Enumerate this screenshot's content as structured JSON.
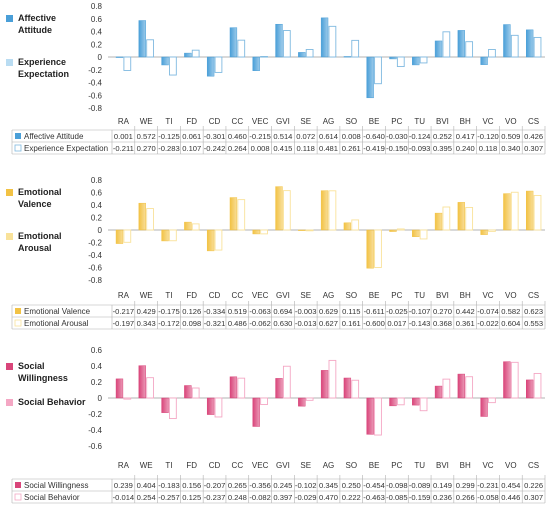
{
  "chart_data": [
    {
      "type": "table",
      "categories": [
        "RA",
        "WE",
        "TI",
        "FD",
        "CD",
        "CC",
        "VEC",
        "GVI",
        "SE",
        "AG",
        "SO",
        "BE",
        "PC",
        "TU",
        "BVI",
        "BH",
        "VC",
        "VO",
        "CS"
      ],
      "yticks": [
        "0.8",
        "0.6",
        "0.4",
        "0.2",
        "0",
        "-0.2",
        "-0.4",
        "-0.6",
        "-0.8"
      ],
      "ylim": [
        -0.8,
        0.8
      ],
      "grid": false,
      "legend_position": "left",
      "series": [
        {
          "name": "Affective Attitude",
          "legend_label": "Affective\nAttitude",
          "color": "#4a9fd8",
          "fill": "gradient",
          "values": [
            0.001,
            0.572,
            -0.125,
            0.061,
            -0.301,
            0.46,
            -0.215,
            0.514,
            0.072,
            0.614,
            0.008,
            -0.64,
            -0.03,
            -0.124,
            0.252,
            0.417,
            -0.12,
            0.509,
            0.426
          ],
          "labels": [
            "0.001",
            "0.572",
            "-0.125",
            "0.061",
            "-0.301",
            "0.460",
            "-0.215",
            "0.514",
            "0.072",
            "0.614",
            "0.008",
            "-0.640",
            "-0.030",
            "-0.124",
            "0.252",
            "0.417",
            "-0.120",
            "0.509",
            "0.426"
          ]
        },
        {
          "name": "Experience Expectation",
          "legend_label": "Experience\nExpectation",
          "color": "#b9dcf2",
          "fill": "outline",
          "values": [
            -0.211,
            0.27,
            -0.283,
            0.107,
            -0.242,
            0.264,
            0.008,
            0.415,
            0.118,
            0.481,
            0.261,
            -0.419,
            -0.15,
            -0.093,
            0.395,
            0.24,
            0.118,
            0.34,
            0.307
          ],
          "labels": [
            "-0.211",
            "0.270",
            "-0.283",
            "0.107",
            "-0.242",
            "0.264",
            "0.008",
            "0.415",
            "0.118",
            "0.481",
            "0.261",
            "-0.419",
            "-0.150",
            "-0.093",
            "0.395",
            "0.240",
            "0.118",
            "0.340",
            "0.307"
          ]
        }
      ]
    },
    {
      "type": "table",
      "categories": [
        "RA",
        "WE",
        "TI",
        "FD",
        "CD",
        "CC",
        "VEC",
        "GVI",
        "SE",
        "AG",
        "SO",
        "BE",
        "PC",
        "TU",
        "BVI",
        "BH",
        "VC",
        "VO",
        "CS"
      ],
      "yticks": [
        "0.8",
        "0.6",
        "0.4",
        "0.2",
        "0",
        "-0.2",
        "-0.4",
        "-0.6",
        "-0.8"
      ],
      "ylim": [
        -0.8,
        0.8
      ],
      "grid": false,
      "legend_position": "left",
      "series": [
        {
          "name": "Emotional Valence",
          "legend_label": "Emotional\nValence",
          "color": "#f2c244",
          "fill": "gradient",
          "values": [
            -0.217,
            0.429,
            -0.175,
            0.126,
            -0.334,
            0.519,
            -0.063,
            0.694,
            -0.003,
            0.629,
            0.115,
            -0.611,
            -0.025,
            -0.107,
            0.27,
            0.442,
            -0.074,
            0.582,
            0.623
          ],
          "labels": [
            "-0.217",
            "0.429",
            "-0.175",
            "0.126",
            "-0.334",
            "0.519",
            "-0.063",
            "0.694",
            "-0.003",
            "0.629",
            "0.115",
            "-0.611",
            "-0.025",
            "-0.107",
            "0.270",
            "0.442",
            "-0.074",
            "0.582",
            "0.623"
          ]
        },
        {
          "name": "Emotional Arousal",
          "legend_label": "Emotional\nArousal",
          "color": "#f9e29a",
          "fill": "outline",
          "values": [
            -0.197,
            0.343,
            -0.172,
            0.098,
            -0.321,
            0.486,
            -0.062,
            0.63,
            -0.013,
            0.627,
            0.161,
            -0.6,
            0.017,
            -0.143,
            0.368,
            0.361,
            -0.022,
            0.604,
            0.553
          ],
          "labels": [
            "-0.197",
            "0.343",
            "-0.172",
            "0.098",
            "-0.321",
            "0.486",
            "-0.062",
            "0.630",
            "-0.013",
            "0.627",
            "0.161",
            "-0.600",
            "0.017",
            "-0.143",
            "0.368",
            "0.361",
            "-0.022",
            "0.604",
            "0.553"
          ]
        }
      ]
    },
    {
      "type": "table",
      "categories": [
        "RA",
        "WE",
        "TI",
        "FD",
        "CD",
        "CC",
        "VEC",
        "GVI",
        "SE",
        "AG",
        "SO",
        "BE",
        "PC",
        "TU",
        "BVI",
        "BH",
        "VC",
        "VO",
        "CS"
      ],
      "yticks": [
        "0.6",
        "0.4",
        "0.2",
        "0",
        "-0.2",
        "-0.4",
        "-0.6"
      ],
      "ylim": [
        -0.6,
        0.6
      ],
      "grid": false,
      "legend_position": "left",
      "series": [
        {
          "name": "Social Willingness",
          "legend_label": "Social\nWillingness",
          "color": "#d9457a",
          "fill": "gradient",
          "values": [
            0.239,
            0.404,
            -0.183,
            0.156,
            -0.207,
            0.265,
            -0.356,
            0.245,
            -0.102,
            0.345,
            0.25,
            -0.454,
            -0.098,
            -0.089,
            0.149,
            0.299,
            -0.231,
            0.454,
            0.226
          ],
          "labels": [
            "0.239",
            "0.404",
            "-0.183",
            "0.156",
            "-0.207",
            "0.265",
            "-0.356",
            "0.245",
            "-0.102",
            "0.345",
            "0.250",
            "-0.454",
            "-0.098",
            "-0.089",
            "0.149",
            "0.299",
            "-0.231",
            "0.454",
            "0.226"
          ]
        },
        {
          "name": "Social Behavior",
          "legend_label": "Social Behavior",
          "color": "#f4a7c4",
          "fill": "outline",
          "values": [
            -0.014,
            0.254,
            -0.257,
            0.125,
            -0.237,
            0.248,
            -0.082,
            0.397,
            -0.029,
            0.47,
            0.222,
            -0.463,
            -0.085,
            -0.159,
            0.236,
            0.266,
            -0.058,
            0.446,
            0.307
          ],
          "labels": [
            "-0.014",
            "0.254",
            "-0.257",
            "0.125",
            "-0.237",
            "0.248",
            "-0.082",
            "0.397",
            "-0.029",
            "0.470",
            "0.222",
            "-0.463",
            "-0.085",
            "-0.159",
            "0.236",
            "0.266",
            "-0.058",
            "0.446",
            "0.307"
          ]
        }
      ]
    }
  ]
}
